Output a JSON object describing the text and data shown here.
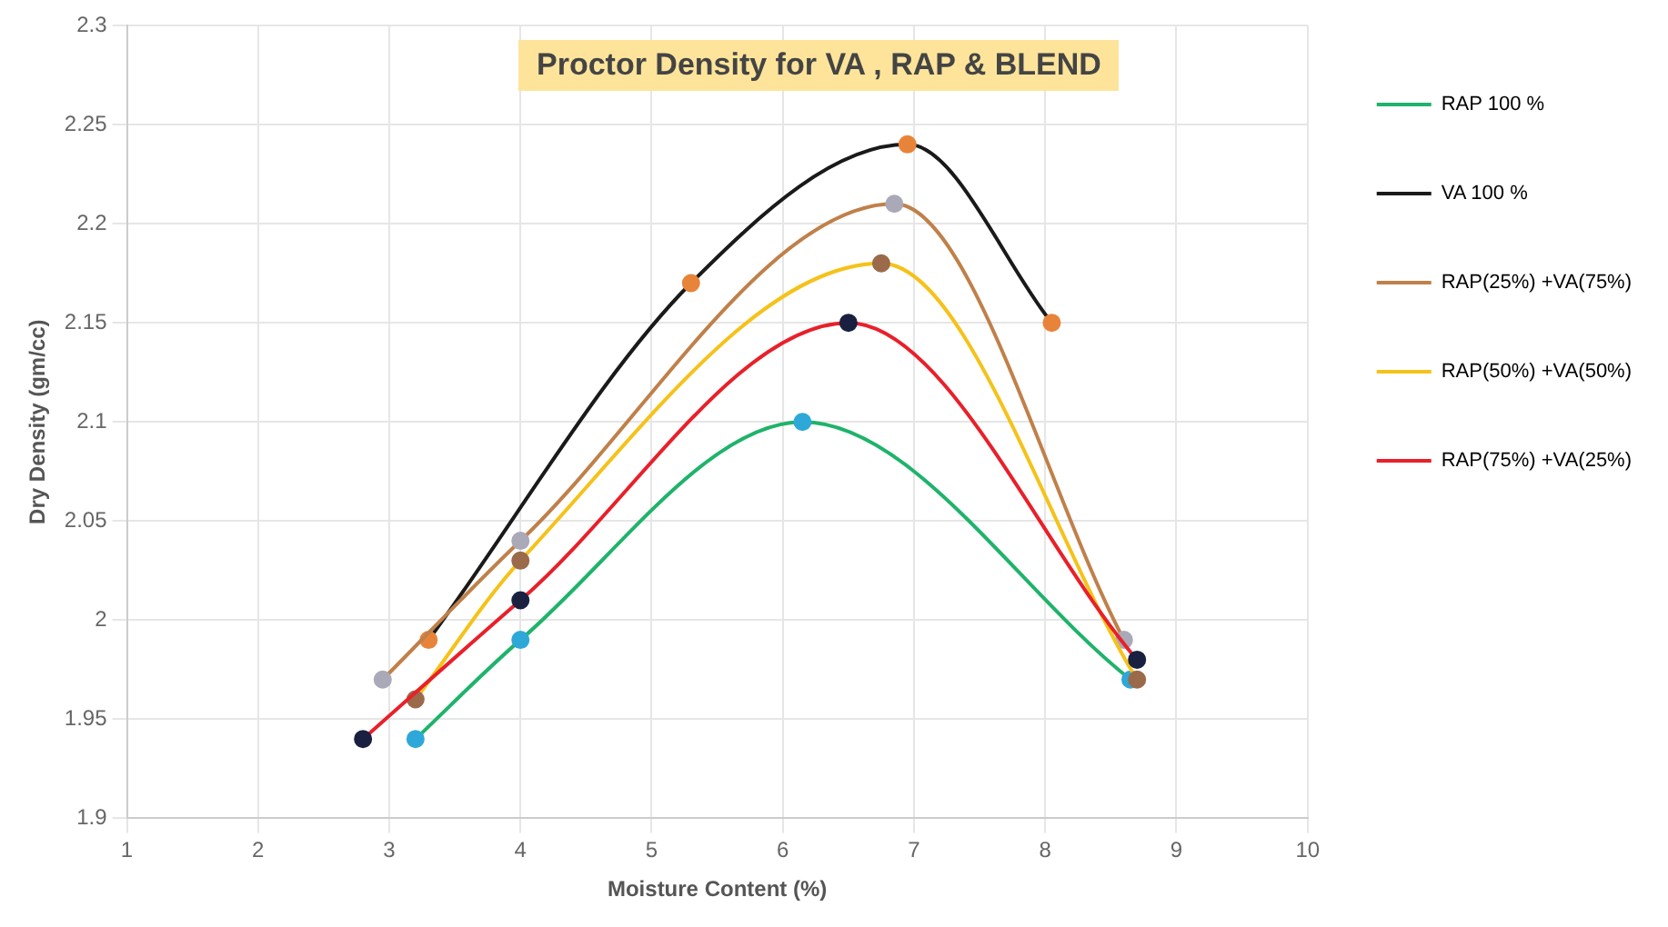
{
  "chart_data": {
    "type": "line",
    "title": "Proctor Density for VA , RAP & BLEND",
    "xlabel": "Moisture Content (%)",
    "ylabel": "Dry Density (gm/cc)",
    "xlim": [
      1,
      10
    ],
    "xticks": [
      1,
      2,
      3,
      4,
      5,
      6,
      7,
      8,
      9,
      10
    ],
    "ylim": [
      1.9,
      2.3
    ],
    "yticks": [
      1.9,
      1.95,
      2,
      2.05,
      2.1,
      2.15,
      2.2,
      2.25,
      2.3
    ],
    "grid": true,
    "legend": "right",
    "marker": "circle",
    "series": [
      {
        "name": "RAP 100 %",
        "color": "#1fb36b",
        "colors": [
          "#2ea8d8",
          "#2ea8d8",
          "#2ea8d8",
          "#2ea8d8"
        ],
        "x": [
          3.2,
          4,
          6.15,
          8.65
        ],
        "values": [
          1.94,
          1.99,
          2.1,
          1.97
        ]
      },
      {
        "name": "VA 100 %",
        "color": "#1a1a1a",
        "colors": [
          "#e8843a",
          "#e8843a",
          "#e8843a",
          "#e8843a"
        ],
        "x": [
          3.3,
          5.3,
          6.95,
          8.05
        ],
        "values": [
          1.99,
          2.17,
          2.24,
          2.15
        ]
      },
      {
        "name": "RAP(25%) +VA(75%)",
        "color": "#c0804a",
        "colors": [
          "#a9a9b8",
          "#a9a9b8",
          "#a9a9b8",
          "#a9a9b8"
        ],
        "x": [
          2.95,
          4,
          6.85,
          8.6
        ],
        "values": [
          1.97,
          2.04,
          2.21,
          1.99
        ]
      },
      {
        "name": "RAP(50%) +VA(50%)",
        "color": "#f5c21a",
        "colors": [
          "#9a6a4a",
          "#9a6a4a",
          "#9a6a4a",
          "#9a6a4a"
        ],
        "x": [
          3.2,
          4,
          6.75,
          8.7
        ],
        "values": [
          1.96,
          2.03,
          2.18,
          1.97
        ]
      },
      {
        "name": "RAP(75%) +VA(25%)",
        "color": "#e8202a",
        "colors": [
          "#1a2040",
          "#1a2040",
          "#1a2040",
          "#1a2040"
        ],
        "x": [
          2.8,
          4,
          6.5,
          8.7
        ],
        "values": [
          1.94,
          2.01,
          2.15,
          1.98
        ]
      }
    ]
  }
}
